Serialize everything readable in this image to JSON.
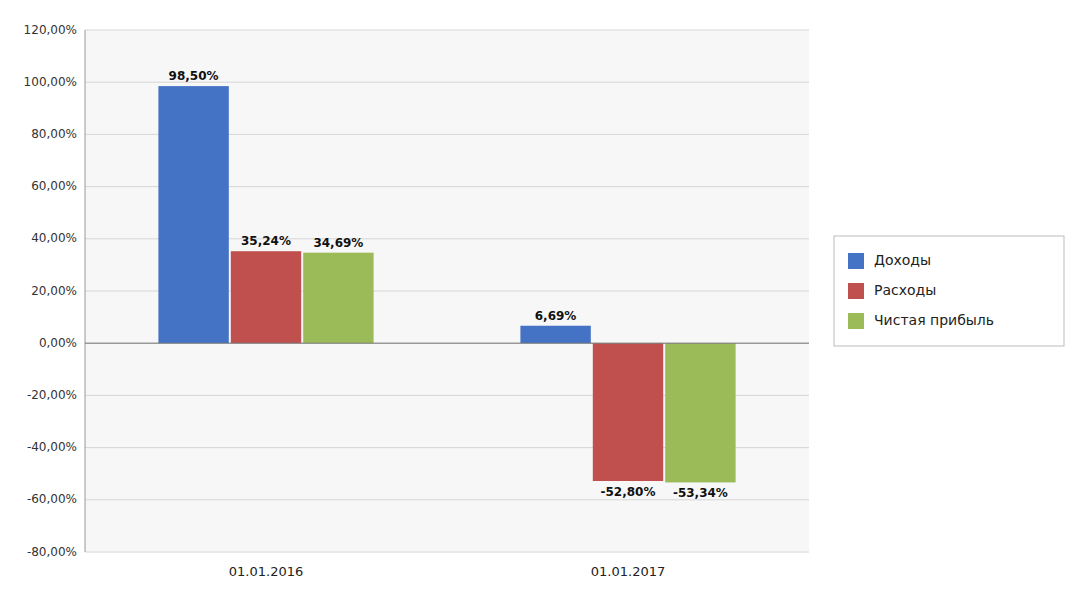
{
  "chart_data": {
    "type": "bar",
    "categories": [
      "01.01.2016",
      "01.01.2017"
    ],
    "series": [
      {
        "name": "Доходы",
        "color": "#4472C4",
        "values": [
          98.5,
          6.69
        ],
        "value_labels": [
          "98,50%",
          "6,69%"
        ]
      },
      {
        "name": "Расходы",
        "color": "#C0504D",
        "values": [
          35.24,
          -52.8
        ],
        "value_labels": [
          "35,24%",
          "-52,80%"
        ]
      },
      {
        "name": "Чистая прибыль",
        "color": "#9BBB59",
        "values": [
          34.69,
          -53.34
        ],
        "value_labels": [
          "34,69%",
          "-53,34%"
        ]
      }
    ],
    "ylim": [
      -80,
      120
    ],
    "yticks": [
      {
        "value": -80,
        "label": "-80,00%"
      },
      {
        "value": -60,
        "label": "-60,00%"
      },
      {
        "value": -40,
        "label": "-40,00%"
      },
      {
        "value": -20,
        "label": "-20,00%"
      },
      {
        "value": 0,
        "label": "0,00%"
      },
      {
        "value": 20,
        "label": "20,00%"
      },
      {
        "value": 40,
        "label": "40,00%"
      },
      {
        "value": 60,
        "label": "60,00%"
      },
      {
        "value": 80,
        "label": "80,00%"
      },
      {
        "value": 100,
        "label": "100,00%"
      },
      {
        "value": 120,
        "label": "120,00%"
      }
    ],
    "grid": true,
    "legend": "right",
    "data_labels": true
  }
}
